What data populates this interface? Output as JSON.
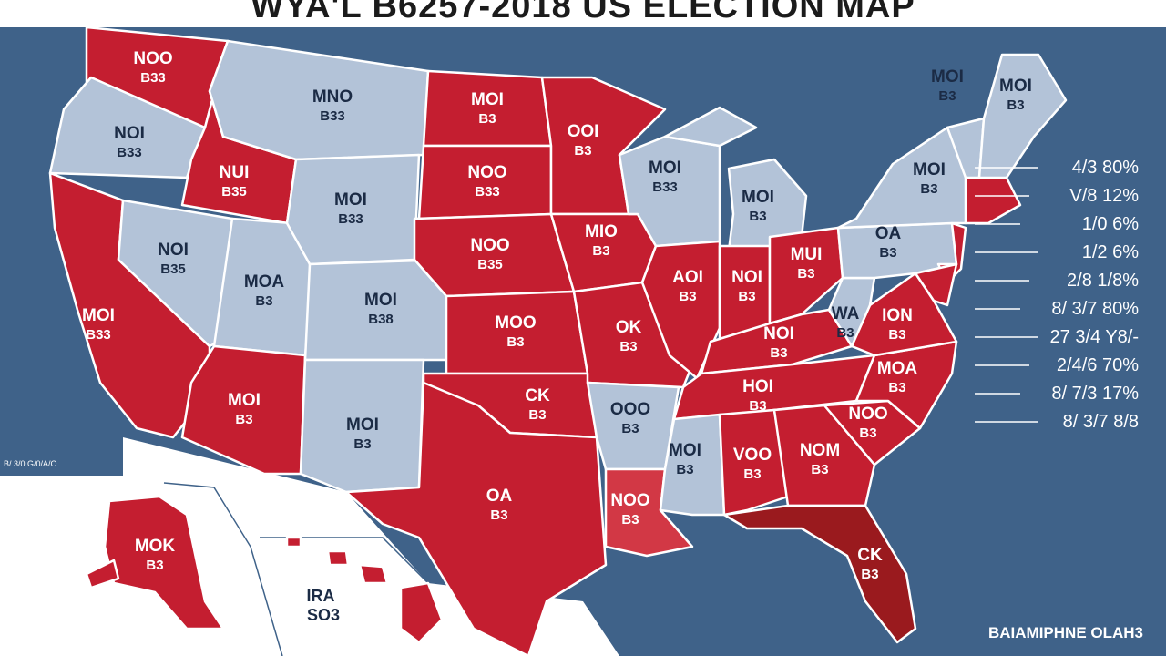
{
  "title": "WYA'L B6257-2018 US ELECTION MAP",
  "colors": {
    "ocean": "#3f6289",
    "red": "#c41e30",
    "blue": "#b3c3d8",
    "florida_dark": "#9a1a1e",
    "louisiana_light": "#d23845",
    "border": "#ffffff",
    "legend_highlight": "#e22a3a"
  },
  "states": [
    {
      "id": "WA",
      "party": "red",
      "label": [
        "NOO",
        "B33"
      ]
    },
    {
      "id": "OR",
      "party": "blue",
      "label": [
        "NOI",
        "B33"
      ]
    },
    {
      "id": "CA",
      "party": "red",
      "label": [
        "MOI",
        "B33"
      ]
    },
    {
      "id": "ID",
      "party": "red",
      "label": [
        "NUI",
        "B35"
      ]
    },
    {
      "id": "NV",
      "party": "blue",
      "label": [
        "NOI",
        "B35"
      ]
    },
    {
      "id": "UT",
      "party": "blue",
      "label": [
        "MOA",
        "B3"
      ]
    },
    {
      "id": "AZ",
      "party": "red",
      "label": [
        "MOI",
        "B3"
      ]
    },
    {
      "id": "MT",
      "party": "blue",
      "label": [
        "MNO",
        "B33"
      ]
    },
    {
      "id": "WY",
      "party": "blue",
      "label": [
        "MOI",
        "B33"
      ]
    },
    {
      "id": "CO",
      "party": "blue",
      "label": [
        "MOI",
        "B38"
      ]
    },
    {
      "id": "NM",
      "party": "blue",
      "label": [
        "MOI",
        "B3"
      ]
    },
    {
      "id": "ND",
      "party": "red",
      "label": [
        "MOI",
        "B3"
      ]
    },
    {
      "id": "SD",
      "party": "red",
      "label": [
        "NOO",
        "B33"
      ]
    },
    {
      "id": "NE",
      "party": "red",
      "label": [
        "NOO",
        "B35"
      ]
    },
    {
      "id": "KS",
      "party": "red",
      "label": [
        "MOO",
        "B3"
      ]
    },
    {
      "id": "OK",
      "party": "red",
      "label": [
        "CK",
        "B3"
      ]
    },
    {
      "id": "TX",
      "party": "red",
      "label": [
        "OA",
        "B3"
      ]
    },
    {
      "id": "MN",
      "party": "red",
      "label": [
        "OOI",
        "B3"
      ]
    },
    {
      "id": "IA",
      "party": "red",
      "label": [
        "MIO",
        "B3"
      ]
    },
    {
      "id": "MO",
      "party": "red",
      "label": [
        "OK",
        "B3"
      ]
    },
    {
      "id": "AR",
      "party": "blue",
      "label": [
        "OOO",
        "B3"
      ]
    },
    {
      "id": "LA",
      "party": "red_light",
      "label": [
        "NOO",
        "B3"
      ]
    },
    {
      "id": "WI",
      "party": "blue",
      "label": [
        "MOI",
        "B33"
      ]
    },
    {
      "id": "IL",
      "party": "red",
      "label": [
        "AOI",
        "B3"
      ]
    },
    {
      "id": "MI",
      "party": "blue",
      "label": [
        "MOI",
        "B3"
      ]
    },
    {
      "id": "IN",
      "party": "red",
      "label": [
        "NOI",
        "B3"
      ]
    },
    {
      "id": "OH",
      "party": "red",
      "label": [
        "MUI",
        "B3"
      ]
    },
    {
      "id": "KY",
      "party": "red",
      "label": [
        "NOI",
        "B3"
      ]
    },
    {
      "id": "TN",
      "party": "red",
      "label": [
        "HOI",
        "B3"
      ]
    },
    {
      "id": "MS",
      "party": "blue",
      "label": [
        "MOI",
        "B3"
      ]
    },
    {
      "id": "AL",
      "party": "red",
      "label": [
        "VOO",
        "B3"
      ]
    },
    {
      "id": "GA",
      "party": "red",
      "label": [
        "NOM",
        "B3"
      ]
    },
    {
      "id": "FL",
      "party": "red_dark",
      "label": [
        "CK",
        "B3"
      ]
    },
    {
      "id": "SC",
      "party": "red",
      "label": [
        "NOO",
        "B3"
      ]
    },
    {
      "id": "NC",
      "party": "red",
      "label": [
        "MOA",
        "B3"
      ]
    },
    {
      "id": "VA",
      "party": "red",
      "label": [
        "ION",
        "B3"
      ]
    },
    {
      "id": "WV",
      "party": "blue",
      "label": [
        "WA",
        "B3"
      ]
    },
    {
      "id": "PA",
      "party": "blue",
      "label": [
        "OA",
        "B3"
      ]
    },
    {
      "id": "NY",
      "party": "blue",
      "label": [
        "MOI",
        "B3"
      ]
    },
    {
      "id": "NJ",
      "party": "red",
      "label": [
        "",
        ""
      ]
    },
    {
      "id": "MD",
      "party": "red",
      "label": [
        "",
        ""
      ]
    },
    {
      "id": "DE",
      "party": "red",
      "label": [
        "",
        ""
      ]
    },
    {
      "id": "NE_CORNER",
      "party": "red",
      "label": [
        "",
        ""
      ]
    },
    {
      "id": "VT_NH",
      "party": "blue",
      "label": [
        "MOI",
        "B3"
      ]
    },
    {
      "id": "ME",
      "party": "blue",
      "label": [
        "MOI",
        "B3"
      ]
    },
    {
      "id": "AK",
      "party": "red",
      "label": [
        "MOK",
        "B3"
      ]
    },
    {
      "id": "HI",
      "party": "red",
      "label": [
        "",
        ""
      ]
    }
  ],
  "legend": [
    {
      "text": "4/3 80%",
      "highlight": false
    },
    {
      "text": "V/8 12%",
      "highlight": true
    },
    {
      "text": "1/0 6%",
      "highlight": false
    },
    {
      "text": "1/2 6%",
      "highlight": false
    },
    {
      "text": "2/8 1/8%",
      "highlight": true
    },
    {
      "text": "8/ 3/7 80%",
      "highlight": false
    },
    {
      "text": "27 3/4 Y8/-",
      "highlight": false
    },
    {
      "text": "2/4/6 70%",
      "highlight": false
    },
    {
      "text": "8/ 7/3 17%",
      "highlight": false
    },
    {
      "text": "8/ 3/7 8/8",
      "highlight": false
    }
  ],
  "hawaii_label": [
    "IRA",
    "SO3"
  ],
  "mainland_left_text": "B/ 3/0 G/0/A/O",
  "footer_text": "BAIAMIPHNE OLAH3"
}
